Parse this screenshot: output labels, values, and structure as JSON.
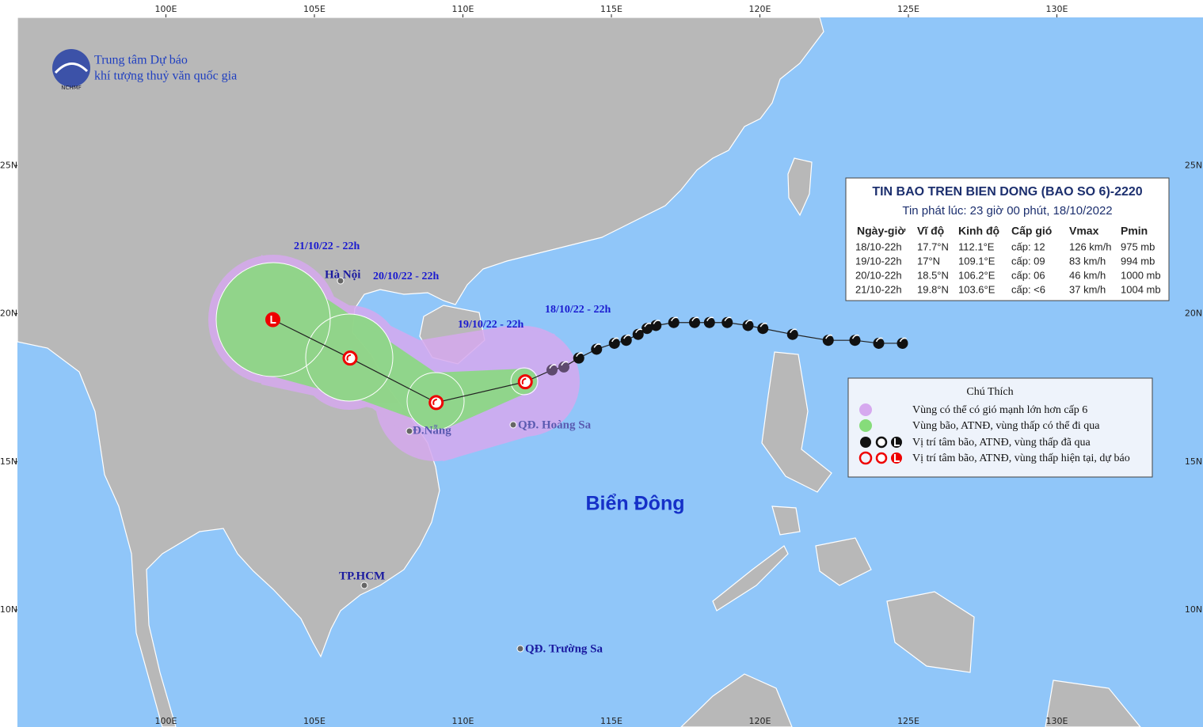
{
  "header": {
    "org_line1": "Trung tâm Dự báo",
    "org_line2": "khí tượng thuỷ văn quốc gia",
    "logo_text": "NCHMF"
  },
  "grid": {
    "lon_labels": [
      {
        "value": 100,
        "label": "100E"
      },
      {
        "value": 105,
        "label": "105E"
      },
      {
        "value": 110,
        "label": "110E"
      },
      {
        "value": 115,
        "label": "115E"
      },
      {
        "value": 120,
        "label": "120E"
      },
      {
        "value": 125,
        "label": "125E"
      },
      {
        "value": 130,
        "label": "130E"
      }
    ],
    "lat_labels": [
      {
        "value": 25,
        "label": "25N"
      },
      {
        "value": 20,
        "label": "20N"
      },
      {
        "value": 15,
        "label": "15N"
      },
      {
        "value": 10,
        "label": "10N"
      }
    ]
  },
  "bulletin": {
    "title": "TIN BAO TREN BIEN DONG (BAO SO 6)-2220",
    "issued": "Tin phát lúc: 23 giờ 00 phút, 18/10/2022",
    "columns": [
      "Ngày-giờ",
      "Vĩ độ",
      "Kinh độ",
      "Cấp gió",
      "Vmax",
      "Pmin"
    ],
    "rows": [
      [
        "18/10-22h",
        {
          "value": 17.7,
          "label": "17.7°N"
        },
        {
          "value": 112.1,
          "label": "112.1°E"
        },
        "cấp: 12",
        "126 km/h",
        "975 mb"
      ],
      [
        "19/10-22h",
        {
          "value": 17,
          "label": "17°N"
        },
        {
          "value": 109.1,
          "label": "109.1°E"
        },
        "cấp: 09",
        "83 km/h",
        "994 mb"
      ],
      [
        "20/10-22h",
        {
          "value": 18.5,
          "label": "18.5°N"
        },
        {
          "value": 106.2,
          "label": "106.2°E"
        },
        "cấp: 06",
        "46 km/h",
        "1000 mb"
      ],
      [
        "21/10-22h",
        {
          "value": 19.8,
          "label": "19.8°N"
        },
        {
          "value": 103.6,
          "label": "103.6°E"
        },
        "cấp: <6",
        "37 km/h",
        "1004 mb"
      ]
    ]
  },
  "forecast_labels": [
    "18/10/22 - 22h",
    "19/10/22 - 22h",
    "20/10/22 - 22h",
    "21/10/22 - 22h"
  ],
  "past_track": {
    "lon": [
      124.8,
      124.0,
      123.2,
      122.3,
      121.1,
      120.1,
      119.6,
      118.9,
      118.3,
      117.8,
      117.1,
      116.5,
      116.2,
      115.9,
      115.5,
      115.1,
      114.5,
      113.9,
      113.4,
      113.0
    ],
    "lat": [
      19.0,
      19.0,
      19.1,
      19.1,
      19.3,
      19.5,
      19.6,
      19.7,
      19.7,
      19.7,
      19.7,
      19.6,
      19.5,
      19.3,
      19.1,
      19.0,
      18.8,
      18.5,
      18.2,
      18.1
    ]
  },
  "places": [
    "Hà Nội",
    "Đ.Nẵng",
    "QĐ. Hoàng Sa",
    "TP.HCM",
    "QĐ. Trường Sa",
    "Biển Đông"
  ],
  "legend": {
    "title": "Chú Thích",
    "items": [
      "Vùng có thể có gió mạnh lớn hơn cấp 6",
      "Vùng bão, ATNĐ, vùng thấp có thể đi qua",
      "Vị trí tâm bão, ATNĐ, vùng thấp đã qua",
      "Vị trí tâm bão, ATNĐ, vùng thấp hiện tại, dự báo"
    ]
  }
}
